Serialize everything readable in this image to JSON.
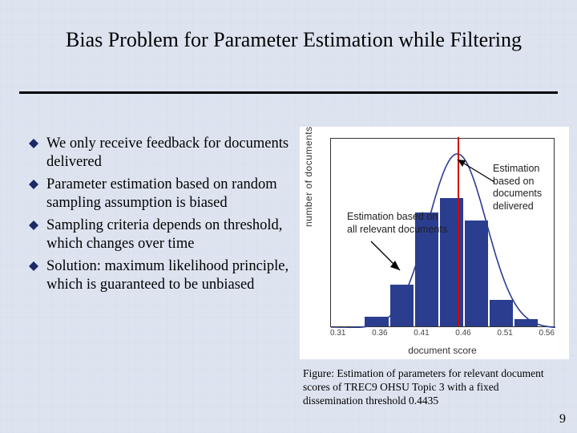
{
  "title": "Bias Problem for Parameter Estimation while Filtering",
  "bullets": [
    "We only receive feedback for documents delivered",
    "Parameter estimation based on random sampling assumption is biased",
    "Sampling criteria depends on threshold, which changes over time",
    "Solution: maximum likelihood principle, which is guaranteed to be unbiased"
  ],
  "chart": {
    "type": "histogram-with-curve",
    "ylabel": "number of documents",
    "xlabel": "document score",
    "xlim": [
      0.29,
      0.56
    ],
    "ylim": [
      0,
      0.5
    ],
    "yticks_approx": [
      0,
      0.1,
      0.2,
      0.3,
      0.4,
      0.45
    ],
    "xticks": [
      0.31,
      0.36,
      0.41,
      0.46,
      0.51,
      0.56
    ],
    "bars": [
      {
        "x0": 0.33,
        "x1": 0.36,
        "h": 0.025
      },
      {
        "x0": 0.36,
        "x1": 0.39,
        "h": 0.11
      },
      {
        "x0": 0.39,
        "x1": 0.42,
        "h": 0.3
      },
      {
        "x0": 0.42,
        "x1": 0.45,
        "h": 0.34
      },
      {
        "x0": 0.45,
        "x1": 0.48,
        "h": 0.28
      },
      {
        "x0": 0.48,
        "x1": 0.51,
        "h": 0.07
      },
      {
        "x0": 0.51,
        "x1": 0.54,
        "h": 0.02
      }
    ],
    "bar_color": "#2a3d8f",
    "curve_color": "#2a3d8f",
    "curve_mu": 0.442,
    "curve_sigma": 0.035,
    "curve_peak": 0.46,
    "threshold_x": 0.4435,
    "threshold_color": "#d20000",
    "anno1_lines": [
      "Estimation",
      "based on",
      "documents",
      "delivered"
    ],
    "anno2_lines": [
      "Estimation based on",
      "all relevant documents"
    ],
    "background": "#ffffff",
    "font_family": "Arial"
  },
  "caption": "Figure: Estimation of parameters for relevant document scores of TREC9 OHSU Topic 3 with a fixed dissemination threshold 0.4435",
  "slide_number": "9",
  "colors": {
    "slide_bg": "#dde4f0",
    "bullet_marker": "#1b2a66",
    "rule": "#000000"
  },
  "fonts": {
    "title_pt": 26,
    "body_pt": 18.5,
    "caption_pt": 13.5,
    "axis_pt": 12,
    "tick_pt": 10
  }
}
